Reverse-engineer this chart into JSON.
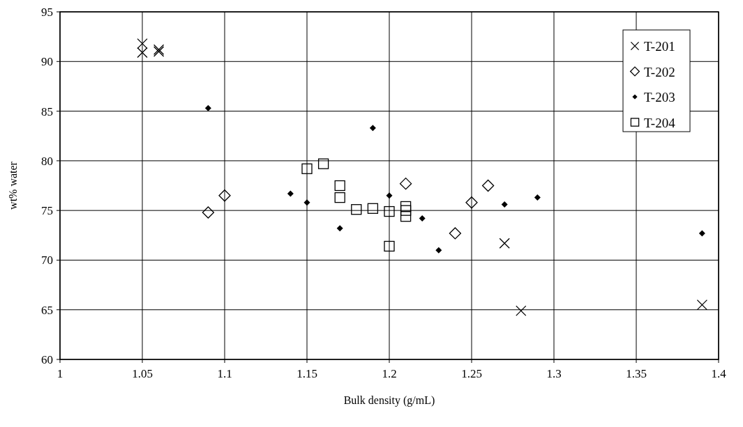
{
  "chart_data": {
    "type": "scatter",
    "xlabel": "Bulk density (g/mL)",
    "ylabel": "wt% water",
    "xlim": [
      1,
      1.4
    ],
    "xticks": [
      1,
      1.05,
      1.1,
      1.15,
      1.2,
      1.25,
      1.3,
      1.35,
      1.4
    ],
    "ylim": [
      60,
      95
    ],
    "yticks": [
      60,
      65,
      70,
      75,
      80,
      85,
      90,
      95
    ],
    "grid": true,
    "legend": "top right",
    "series": [
      {
        "name": "T-201",
        "color": "#000000",
        "marker": "cross",
        "x": [
          1.05,
          1.05,
          1.06,
          1.06,
          1.27,
          1.28,
          1.39
        ],
        "values": [
          91.8,
          90.9,
          91.2,
          91.0,
          71.7,
          64.9,
          65.5
        ]
      },
      {
        "name": "T-202",
        "color": "#000000",
        "marker": "diamond",
        "x": [
          1.09,
          1.1,
          1.21,
          1.24,
          1.25,
          1.26
        ],
        "values": [
          74.8,
          76.5,
          77.7,
          72.7,
          75.8,
          77.5
        ]
      },
      {
        "name": "T-203",
        "color": "#000000",
        "marker": "diamond",
        "x": [
          1.09,
          1.14,
          1.15,
          1.17,
          1.19,
          1.2,
          1.22,
          1.23,
          1.27,
          1.29,
          1.39
        ],
        "values": [
          85.3,
          76.7,
          75.8,
          73.2,
          83.3,
          76.5,
          74.2,
          71.0,
          75.6,
          76.3,
          72.7
        ]
      },
      {
        "name": "T-204",
        "color": "#000000",
        "marker": "square",
        "x": [
          1.15,
          1.16,
          1.17,
          1.17,
          1.18,
          1.19,
          1.2,
          1.2,
          1.21,
          1.21,
          1.21
        ],
        "values": [
          79.2,
          79.7,
          77.5,
          76.3,
          75.1,
          75.2,
          74.9,
          71.4,
          75.4,
          75.0,
          74.4
        ]
      }
    ]
  }
}
